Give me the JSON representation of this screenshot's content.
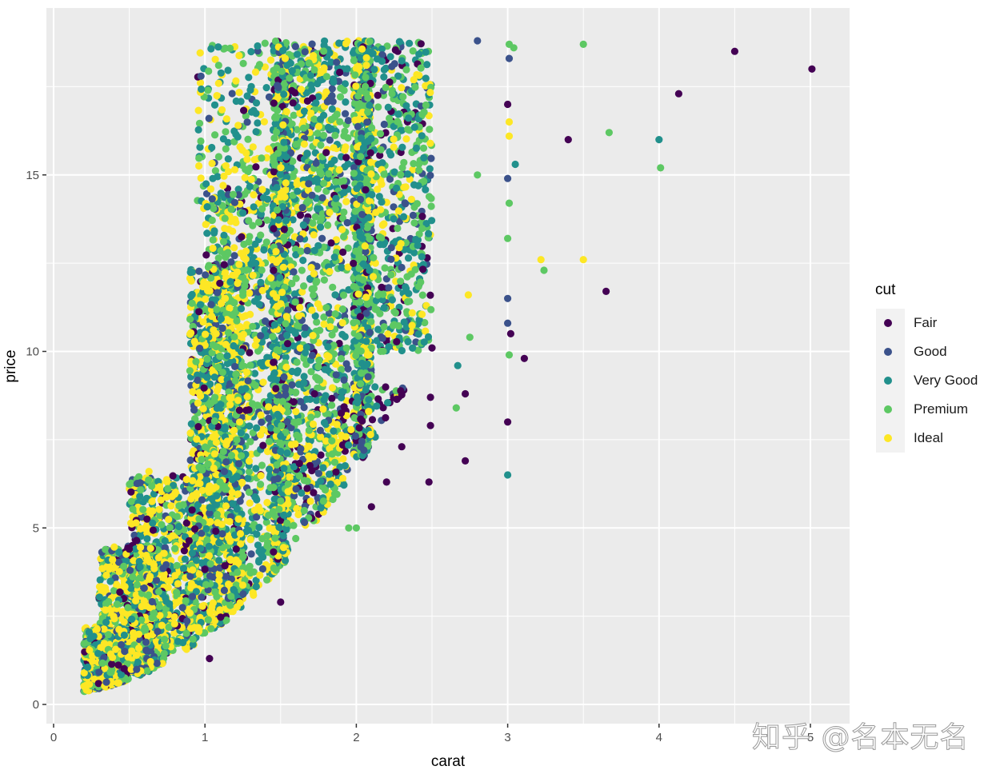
{
  "chart_data": {
    "type": "scatter",
    "title": "",
    "xlabel": "carat",
    "ylabel": "price",
    "xlim": [
      -0.05,
      5.05
    ],
    "ylim": [
      -0.9,
      19.7
    ],
    "x_ticks": [
      0,
      1,
      2,
      3,
      4,
      5
    ],
    "x_tick_labels": [
      "0",
      "1",
      "2",
      "3",
      "4",
      "5"
    ],
    "y_ticks": [
      0,
      5,
      10,
      15
    ],
    "y_tick_labels": [
      "0",
      "5",
      "10",
      "15"
    ],
    "y_units_note": "price shown in thousands",
    "grid": true,
    "minor_grid": true,
    "panel_background": "#ebebeb",
    "grid_color": "#ffffff",
    "legend": {
      "title": "cut",
      "position": "right",
      "entries": [
        {
          "label": "Fair",
          "color": "#440154"
        },
        {
          "label": "Good",
          "color": "#3b528b"
        },
        {
          "label": "Very Good",
          "color": "#21908c"
        },
        {
          "label": "Premium",
          "color": "#5dc863"
        },
        {
          "label": "Ideal",
          "color": "#fde725"
        }
      ]
    },
    "series_summary": "Dense cloud of ~54k diamonds; price rises steeply with carat, with vertical banding at 0.3, 0.5, 0.7, 0.9, 1.0, 1.2, 1.5, 1.7, 2.0 carats; price saturates near 18.8",
    "density_clusters": [
      {
        "x_range": [
          0.2,
          0.5
        ],
        "y_range": [
          0.3,
          2.2
        ],
        "n": 700,
        "mix": [
          0.05,
          0.1,
          0.2,
          0.25,
          0.4
        ]
      },
      {
        "x_range": [
          0.3,
          0.75
        ],
        "y_range": [
          0.5,
          4.5
        ],
        "n": 700,
        "mix": [
          0.05,
          0.1,
          0.2,
          0.25,
          0.4
        ]
      },
      {
        "x_range": [
          0.5,
          0.95
        ],
        "y_range": [
          1.5,
          6.5
        ],
        "n": 700,
        "mix": [
          0.07,
          0.1,
          0.2,
          0.25,
          0.38
        ]
      },
      {
        "x_range": [
          0.9,
          1.25
        ],
        "y_range": [
          2.0,
          12.5
        ],
        "n": 1100,
        "mix": [
          0.05,
          0.1,
          0.25,
          0.25,
          0.35
        ]
      },
      {
        "x_range": [
          1.0,
          1.5
        ],
        "y_range": [
          3.0,
          14.5
        ],
        "n": 900,
        "mix": [
          0.05,
          0.1,
          0.25,
          0.3,
          0.3
        ]
      },
      {
        "x_range": [
          1.45,
          1.55
        ],
        "y_range": [
          3.0,
          18.8
        ],
        "n": 700,
        "mix": [
          0.08,
          0.12,
          0.3,
          0.3,
          0.2
        ]
      },
      {
        "x_range": [
          1.5,
          1.95
        ],
        "y_range": [
          5.0,
          18.8
        ],
        "n": 900,
        "mix": [
          0.06,
          0.1,
          0.28,
          0.32,
          0.24
        ]
      },
      {
        "x_range": [
          1.98,
          2.1
        ],
        "y_range": [
          7.0,
          18.8
        ],
        "n": 700,
        "mix": [
          0.06,
          0.12,
          0.3,
          0.35,
          0.17
        ]
      },
      {
        "x_range": [
          2.0,
          2.5
        ],
        "y_range": [
          10.0,
          18.8
        ],
        "n": 600,
        "mix": [
          0.06,
          0.1,
          0.3,
          0.38,
          0.16
        ]
      },
      {
        "x_range": [
          0.95,
          1.9
        ],
        "y_range": [
          14.0,
          18.8
        ],
        "n": 350,
        "mix": [
          0.02,
          0.08,
          0.3,
          0.3,
          0.3
        ]
      },
      {
        "x_range": [
          1.4,
          2.4
        ],
        "y_range": [
          5.0,
          9.0
        ],
        "n": 120,
        "mix": [
          0.6,
          0.1,
          0.1,
          0.15,
          0.05
        ]
      }
    ],
    "outliers": [
      {
        "x": 5.01,
        "y": 18.0,
        "cut": "Fair"
      },
      {
        "x": 4.5,
        "y": 18.5,
        "cut": "Fair"
      },
      {
        "x": 4.13,
        "y": 17.3,
        "cut": "Fair"
      },
      {
        "x": 4.01,
        "y": 15.2,
        "cut": "Premium"
      },
      {
        "x": 4.0,
        "y": 16.0,
        "cut": "Very Good"
      },
      {
        "x": 3.65,
        "y": 11.7,
        "cut": "Fair"
      },
      {
        "x": 3.67,
        "y": 16.2,
        "cut": "Premium"
      },
      {
        "x": 3.5,
        "y": 18.7,
        "cut": "Premium"
      },
      {
        "x": 3.5,
        "y": 12.6,
        "cut": "Ideal"
      },
      {
        "x": 3.4,
        "y": 16.0,
        "cut": "Fair"
      },
      {
        "x": 3.24,
        "y": 12.3,
        "cut": "Premium"
      },
      {
        "x": 3.22,
        "y": 12.6,
        "cut": "Ideal"
      },
      {
        "x": 3.11,
        "y": 9.8,
        "cut": "Fair"
      },
      {
        "x": 3.05,
        "y": 15.3,
        "cut": "Very Good"
      },
      {
        "x": 3.04,
        "y": 18.6,
        "cut": "Premium"
      },
      {
        "x": 3.02,
        "y": 10.5,
        "cut": "Fair"
      },
      {
        "x": 3.01,
        "y": 18.7,
        "cut": "Premium"
      },
      {
        "x": 3.01,
        "y": 18.3,
        "cut": "Good"
      },
      {
        "x": 3.0,
        "y": 17.0,
        "cut": "Fair"
      },
      {
        "x": 3.01,
        "y": 16.5,
        "cut": "Ideal"
      },
      {
        "x": 3.01,
        "y": 16.1,
        "cut": "Ideal"
      },
      {
        "x": 3.0,
        "y": 14.9,
        "cut": "Good"
      },
      {
        "x": 3.01,
        "y": 14.2,
        "cut": "Premium"
      },
      {
        "x": 3.0,
        "y": 13.2,
        "cut": "Premium"
      },
      {
        "x": 3.0,
        "y": 11.5,
        "cut": "Good"
      },
      {
        "x": 3.0,
        "y": 10.8,
        "cut": "Good"
      },
      {
        "x": 3.01,
        "y": 9.9,
        "cut": "Premium"
      },
      {
        "x": 3.0,
        "y": 8.0,
        "cut": "Fair"
      },
      {
        "x": 3.0,
        "y": 6.5,
        "cut": "Very Good"
      },
      {
        "x": 2.8,
        "y": 18.8,
        "cut": "Good"
      },
      {
        "x": 2.8,
        "y": 15.0,
        "cut": "Premium"
      },
      {
        "x": 2.74,
        "y": 11.6,
        "cut": "Ideal"
      },
      {
        "x": 2.75,
        "y": 10.4,
        "cut": "Premium"
      },
      {
        "x": 2.72,
        "y": 8.8,
        "cut": "Fair"
      },
      {
        "x": 2.72,
        "y": 6.9,
        "cut": "Fair"
      },
      {
        "x": 2.67,
        "y": 9.6,
        "cut": "Very Good"
      },
      {
        "x": 2.66,
        "y": 8.4,
        "cut": "Premium"
      },
      {
        "x": 2.5,
        "y": 10.1,
        "cut": "Fair"
      },
      {
        "x": 2.49,
        "y": 8.7,
        "cut": "Fair"
      },
      {
        "x": 2.49,
        "y": 7.9,
        "cut": "Fair"
      },
      {
        "x": 2.48,
        "y": 6.3,
        "cut": "Fair"
      },
      {
        "x": 2.3,
        "y": 7.3,
        "cut": "Fair"
      },
      {
        "x": 2.2,
        "y": 6.3,
        "cut": "Fair"
      },
      {
        "x": 2.1,
        "y": 5.6,
        "cut": "Fair"
      },
      {
        "x": 2.0,
        "y": 5.0,
        "cut": "Premium"
      },
      {
        "x": 1.95,
        "y": 5.0,
        "cut": "Premium"
      },
      {
        "x": 1.6,
        "y": 4.7,
        "cut": "Premium"
      },
      {
        "x": 1.5,
        "y": 2.9,
        "cut": "Fair"
      },
      {
        "x": 1.03,
        "y": 1.3,
        "cut": "Fair"
      },
      {
        "x": 0.5,
        "y": 4.4,
        "cut": "Fair"
      },
      {
        "x": 0.63,
        "y": 6.6,
        "cut": "Ideal"
      }
    ]
  },
  "axes": {
    "x_title": "carat",
    "y_title": "price"
  },
  "legend": {
    "title": "cut",
    "items": [
      {
        "label": "Fair",
        "color": "#440154"
      },
      {
        "label": "Good",
        "color": "#3b528b"
      },
      {
        "label": "Very Good",
        "color": "#21908c"
      },
      {
        "label": "Premium",
        "color": "#5dc863"
      },
      {
        "label": "Ideal",
        "color": "#fde725"
      }
    ]
  },
  "watermark": "知乎 @名本无名"
}
